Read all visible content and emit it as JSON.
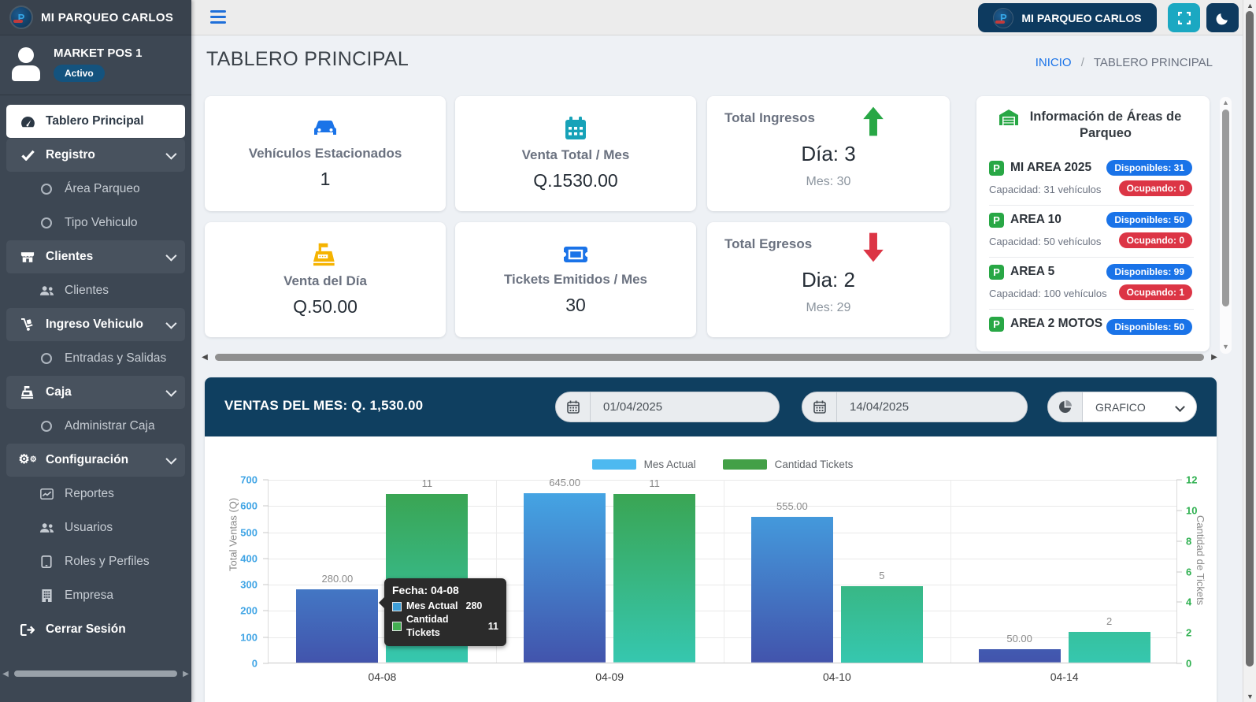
{
  "sidebar": {
    "brand": "MI PARQUEO CARLOS",
    "user": {
      "name": "MARKET POS 1",
      "status": "Activo"
    },
    "items": [
      {
        "label": "Tablero Principal",
        "icon": "gauge-icon",
        "active": true
      },
      {
        "label": "Registro",
        "icon": "check-icon",
        "group": true
      },
      {
        "label": "Área Parqueo",
        "icon": "circle-icon"
      },
      {
        "label": "Tipo Vehiculo",
        "icon": "circle-icon"
      },
      {
        "label": "Clientes",
        "icon": "store-icon",
        "group": true
      },
      {
        "label": "Clientes",
        "icon": "users-icon"
      },
      {
        "label": "Ingreso Vehiculo",
        "icon": "dolly-icon",
        "group": true
      },
      {
        "label": "Entradas y Salidas",
        "icon": "circle-icon"
      },
      {
        "label": "Caja",
        "icon": "cash-register-icon",
        "group": true
      },
      {
        "label": "Administrar Caja",
        "icon": "circle-icon"
      },
      {
        "label": "Configuración",
        "icon": "gears-icon",
        "group": true
      },
      {
        "label": "Reportes",
        "icon": "chart-line-icon"
      },
      {
        "label": "Usuarios",
        "icon": "users-icon"
      },
      {
        "label": "Roles y Perfiles",
        "icon": "tablet-icon"
      },
      {
        "label": "Empresa",
        "icon": "building-icon"
      },
      {
        "label": "Cerrar Sesión",
        "icon": "sign-out-icon"
      }
    ]
  },
  "topbar": {
    "brand_button": "MI PARQUEO CARLOS"
  },
  "page": {
    "title": "TABLERO PRINCIPAL",
    "breadcrumb": {
      "home": "INICIO",
      "separator": "/",
      "current": "TABLERO PRINCIPAL"
    }
  },
  "stats": [
    {
      "label": "Vehículos Estacionados",
      "value": "1",
      "icon": "car-icon",
      "icon_color": "#1a73e8"
    },
    {
      "label": "Venta Total / Mes",
      "value": "Q.1530.00",
      "icon": "calendar-icon",
      "icon_color": "#17a2b8"
    },
    {
      "label": "Venta del Día",
      "value": "Q.50.00",
      "icon": "cash-register-icon",
      "icon_color": "#f5b301"
    },
    {
      "label": "Tickets Emitidos / Mes",
      "value": "30",
      "icon": "ticket-icon",
      "icon_color": "#1a73e8"
    }
  ],
  "flow_cards": [
    {
      "title": "Total Ingresos",
      "day": "Día: 3",
      "month": "Mes: 30",
      "icon": "arrow-up-icon",
      "color": "#28a745"
    },
    {
      "title": "Total Egresos",
      "day": "Dia: 2",
      "month": "Mes: 29",
      "icon": "arrow-down-icon",
      "color": "#dc3545"
    }
  ],
  "areas_panel": {
    "title": "Información de Áreas de Parqueo",
    "icon": "warehouse-icon",
    "areas": [
      {
        "name": "MI AREA 2025",
        "available": "Disponibles: 31",
        "capacity": "Capacidad: 31 vehículos",
        "occupied": "Ocupando: 0"
      },
      {
        "name": "AREA 10",
        "available": "Disponibles: 50",
        "capacity": "Capacidad: 50 vehículos",
        "occupied": "Ocupando: 0"
      },
      {
        "name": "AREA 5",
        "available": "Disponibles: 99",
        "capacity": "Capacidad: 100 vehículos",
        "occupied": "Ocupando: 1"
      },
      {
        "name": "AREA 2 MOTOS",
        "available": "Disponibles: 50"
      }
    ]
  },
  "sales_section": {
    "title": "VENTAS DEL MES: Q. 1,530.00",
    "date_from": "01/04/2025",
    "date_to": "14/04/2025",
    "view_select": "GRAFICO"
  },
  "colors": {
    "navy": "#0d3a5f",
    "teal_button": "#1ba8c2",
    "accent_blue": "#1a73e8",
    "green": "#28a745",
    "red": "#dc3545",
    "yellow": "#f5b301",
    "bar_blue_top": "#45abe8",
    "bar_blue_bottom": "#4254ac",
    "bar_green_top": "#3aa24b",
    "bar_green_bottom": "#36c7af",
    "left_axis": "#41a5e5",
    "right_axis": "#2fb050"
  },
  "chart_data": {
    "type": "bar",
    "title": "VENTAS DEL MES: Q. 1,530.00",
    "categories": [
      "04-08",
      "04-09",
      "04-10",
      "04-14"
    ],
    "series": [
      {
        "name": "Mes Actual",
        "axis": "left",
        "values": [
          280,
          645,
          555,
          50
        ],
        "labels": [
          "280.00",
          "645.00",
          "555.00",
          "50.00"
        ]
      },
      {
        "name": "Cantidad Tickets",
        "axis": "right",
        "values": [
          11,
          11,
          5,
          2
        ],
        "labels": [
          "11",
          "11",
          "5",
          "2"
        ]
      }
    ],
    "ylabel_left": "Total Ventas (Q)",
    "ylabel_right": "Cantidad de Tickets",
    "ylim_left": [
      0,
      700
    ],
    "ylim_right": [
      0,
      12
    ],
    "left_ticks": [
      0,
      100,
      200,
      300,
      400,
      500,
      600,
      700
    ],
    "right_ticks": [
      0,
      2,
      4,
      6,
      8,
      10,
      12
    ],
    "legend": [
      "Mes Actual",
      "Cantidad Tickets"
    ],
    "legend_position": "top",
    "grid": true,
    "tooltip": {
      "title": "Fecha: 04-08",
      "rows": [
        {
          "label": "Mes Actual",
          "value": "280"
        },
        {
          "label": "Cantidad Tickets",
          "value": "11"
        }
      ]
    }
  }
}
